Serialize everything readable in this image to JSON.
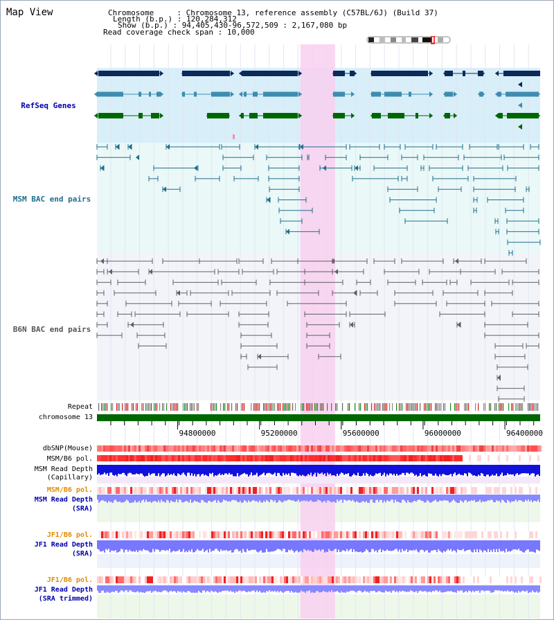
{
  "page": {
    "title": "Map View"
  },
  "info": {
    "chromosome_label": "Chromosome",
    "chromosome_value": "Chromosome 13, reference assembly (C57BL/6J) (Build 37)",
    "length_label": "Length (b.p.)",
    "length_value": "120,284,312",
    "show_label": "Show (b.p.)",
    "show_value": "94,405,430-96,572,509 : 2,167,080 bp",
    "coverage_label": "Read coverage check span",
    "coverage_value": "10,000"
  },
  "tracks": {
    "refseq": "RefSeq Genes",
    "msm_bac": "MSM BAC end pairs",
    "b6n_bac": "B6N BAC end pairs",
    "repeat": "Repeat",
    "chrom": "chromosome 13",
    "dbsnp": "dbSNP(Mouse)",
    "msm_pol": "MSM/B6 pol.",
    "msm_depth_cap_1": "MSM Read Depth",
    "msm_depth_cap_2": "(Capillary)",
    "msm_pol2": "MSM/B6 pol.",
    "msm_depth_sra_1": "MSM Read Depth",
    "msm_depth_sra_2": "(SRA)",
    "jf1_pol": "JF1/B6 pol.",
    "jf1_depth_sra_1": "JF1 Read Depth",
    "jf1_depth_sra_2": "(SRA)",
    "jf1_pol2": "JF1/B6 pol.",
    "jf1_depth_trim_1": "JF1 Read Depth",
    "jf1_depth_trim_2": "(SRA trimmed)"
  },
  "axis": {
    "ticks": [
      {
        "label": "94800000",
        "value": 94800000
      },
      {
        "label": "95200000",
        "value": 95200000
      },
      {
        "label": "95600000",
        "value": 95600000
      },
      {
        "label": "96000000",
        "value": 96000000
      },
      {
        "label": "96400000",
        "value": 96400000
      }
    ],
    "range_start": 94405430,
    "range_end": 96572509,
    "highlight_start": 95400000,
    "highlight_end": 95570000
  },
  "colors": {
    "refseq_bg": "#d8eef8",
    "msm_bg": "#eaf8f8",
    "b6n_bg": "#f2f4fa",
    "highlight": "#f8d0f0",
    "gene_dark": "#0b2a5a",
    "gene_mid": "#3d8db0",
    "gene_green": "#006600",
    "msm_pair": "#1e6e8c",
    "b6n_pair": "#606060",
    "chrom_bar": "#006600",
    "sra_bg": "#eef8ea",
    "label_blue": "#0000aa",
    "label_teal": "#1e6e8c",
    "label_gray": "#555555",
    "label_orange": "#e08a00"
  }
}
